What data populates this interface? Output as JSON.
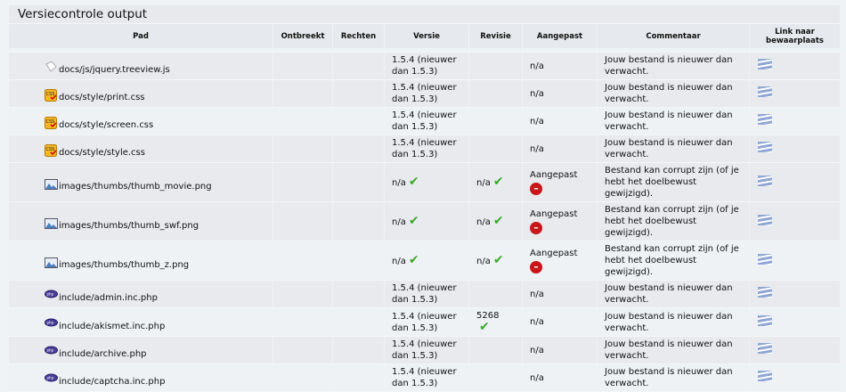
{
  "title": "Versiecontrole output",
  "columns": [
    "Pad",
    "Ontbreekt",
    "Rechten",
    "Versie",
    "Revisie",
    "Aangepast",
    "Commentaar",
    "Link naar bewaarplaats"
  ],
  "rows": [
    {
      "icon": "js-file-icon",
      "path": "docs/js/jquery.treeview.js",
      "missing": "",
      "perms": "",
      "version": "1.5.4 (nieuwer dan 1.5.3)",
      "revision": "",
      "revision_ok": false,
      "version_ok": false,
      "modified": "n/a",
      "modified_bad": false,
      "comment": "Jouw bestand is nieuwer dan verwacht.",
      "shade": "dark"
    },
    {
      "icon": "css-file-icon",
      "path": "docs/style/print.css",
      "missing": "",
      "perms": "",
      "version": "1.5.4 (nieuwer dan 1.5.3)",
      "revision": "",
      "revision_ok": false,
      "version_ok": false,
      "modified": "n/a",
      "modified_bad": false,
      "comment": "Jouw bestand is nieuwer dan verwacht.",
      "shade": "dark"
    },
    {
      "icon": "css-file-icon",
      "path": "docs/style/screen.css",
      "missing": "",
      "perms": "",
      "version": "1.5.4 (nieuwer dan 1.5.3)",
      "revision": "",
      "revision_ok": false,
      "version_ok": false,
      "modified": "n/a",
      "modified_bad": false,
      "comment": "Jouw bestand is nieuwer dan verwacht.",
      "shade": "light"
    },
    {
      "icon": "css-file-icon",
      "path": "docs/style/style.css",
      "missing": "",
      "perms": "",
      "version": "1.5.4 (nieuwer dan 1.5.3)",
      "revision": "",
      "revision_ok": false,
      "version_ok": false,
      "modified": "n/a",
      "modified_bad": false,
      "comment": "Jouw bestand is nieuwer dan verwacht.",
      "shade": "dark"
    },
    {
      "icon": "image-file-icon",
      "path": "images/thumbs/thumb_movie.png",
      "missing": "",
      "perms": "",
      "version": "n/a",
      "version_ok": true,
      "revision": "n/a",
      "revision_ok": true,
      "modified": "Aangepast",
      "modified_bad": true,
      "comment": "Bestand kan corrupt zijn (of je hebt het doelbewust gewijzigd).",
      "shade": "dark"
    },
    {
      "icon": "image-file-icon",
      "path": "images/thumbs/thumb_swf.png",
      "missing": "",
      "perms": "",
      "version": "n/a",
      "version_ok": true,
      "revision": "n/a",
      "revision_ok": true,
      "modified": "Aangepast",
      "modified_bad": true,
      "comment": "Bestand kan corrupt zijn (of je hebt het doelbewust gewijzigd).",
      "shade": "dark"
    },
    {
      "icon": "image-file-icon",
      "path": "images/thumbs/thumb_z.png",
      "missing": "",
      "perms": "",
      "version": "n/a",
      "version_ok": true,
      "revision": "n/a",
      "revision_ok": true,
      "modified": "Aangepast",
      "modified_bad": true,
      "comment": "Bestand kan corrupt zijn (of je hebt het doelbewust gewijzigd).",
      "shade": "light"
    },
    {
      "icon": "php-file-icon",
      "path": "include/admin.inc.php",
      "missing": "",
      "perms": "",
      "version": "1.5.4 (nieuwer dan 1.5.3)",
      "version_ok": false,
      "revision": "",
      "revision_ok": false,
      "modified": "n/a",
      "modified_bad": false,
      "comment": "Jouw bestand is nieuwer dan verwacht.",
      "shade": "dark"
    },
    {
      "icon": "php-file-icon",
      "path": "include/akismet.inc.php",
      "missing": "",
      "perms": "",
      "version": "1.5.4 (nieuwer dan 1.5.3)",
      "version_ok": false,
      "revision": "5268",
      "revision_ok": true,
      "modified": "n/a",
      "modified_bad": false,
      "comment": "Jouw bestand is nieuwer dan verwacht.",
      "shade": "light"
    },
    {
      "icon": "php-file-icon",
      "path": "include/archive.php",
      "missing": "",
      "perms": "",
      "version": "1.5.4 (nieuwer dan 1.5.3)",
      "version_ok": false,
      "revision": "",
      "revision_ok": false,
      "modified": "n/a",
      "modified_bad": false,
      "comment": "Jouw bestand is nieuwer dan verwacht.",
      "shade": "dark"
    },
    {
      "icon": "php-file-icon",
      "path": "include/captcha.inc.php",
      "missing": "",
      "perms": "",
      "version": "1.5.4 (nieuwer dan 1.5.3)",
      "version_ok": false,
      "revision": "",
      "revision_ok": false,
      "modified": "n/a",
      "modified_bad": false,
      "comment": "Jouw bestand is nieuwer dan verwacht.",
      "shade": "light"
    }
  ]
}
